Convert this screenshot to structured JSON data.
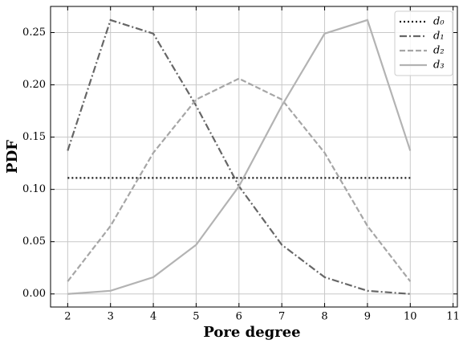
{
  "chart_data": {
    "type": "line",
    "x_label": "Pore degree",
    "y_label": "PDF",
    "x": [
      2,
      3,
      4,
      5,
      6,
      7,
      8,
      9,
      10
    ],
    "series": [
      {
        "name": "d₀",
        "color": "#1a1a1a",
        "dash": "dotted",
        "values": [
          0.111,
          0.111,
          0.111,
          0.111,
          0.111,
          0.111,
          0.111,
          0.111,
          0.111
        ]
      },
      {
        "name": "d₁",
        "color": "#666666",
        "dash": "dashdot",
        "values": [
          0.137,
          0.262,
          0.249,
          0.18,
          0.103,
          0.047,
          0.016,
          0.003,
          0.0
        ]
      },
      {
        "name": "d₂",
        "color": "#a6a6a6",
        "dash": "dashed",
        "values": [
          0.012,
          0.065,
          0.135,
          0.186,
          0.206,
          0.186,
          0.135,
          0.065,
          0.012
        ]
      },
      {
        "name": "d₃",
        "color": "#b3b3b3",
        "dash": "solid",
        "values": [
          0.0,
          0.003,
          0.016,
          0.047,
          0.103,
          0.18,
          0.249,
          0.262,
          0.137
        ]
      }
    ],
    "xlim": [
      1.6,
      11.1
    ],
    "ylim": [
      -0.0125,
      0.275
    ],
    "xticks": [
      2,
      3,
      4,
      5,
      6,
      7,
      8,
      9,
      10,
      11
    ],
    "yticks": [
      {
        "value": 0,
        "label": "0.00"
      },
      {
        "value": 0.05,
        "label": "0.05"
      },
      {
        "value": 0.1,
        "label": "0.10"
      },
      {
        "value": 0.15,
        "label": "0.15"
      },
      {
        "value": 0.2,
        "label": "0.20"
      },
      {
        "value": 0.25,
        "label": "0.25"
      }
    ],
    "grid": true,
    "legend": "upper right"
  }
}
